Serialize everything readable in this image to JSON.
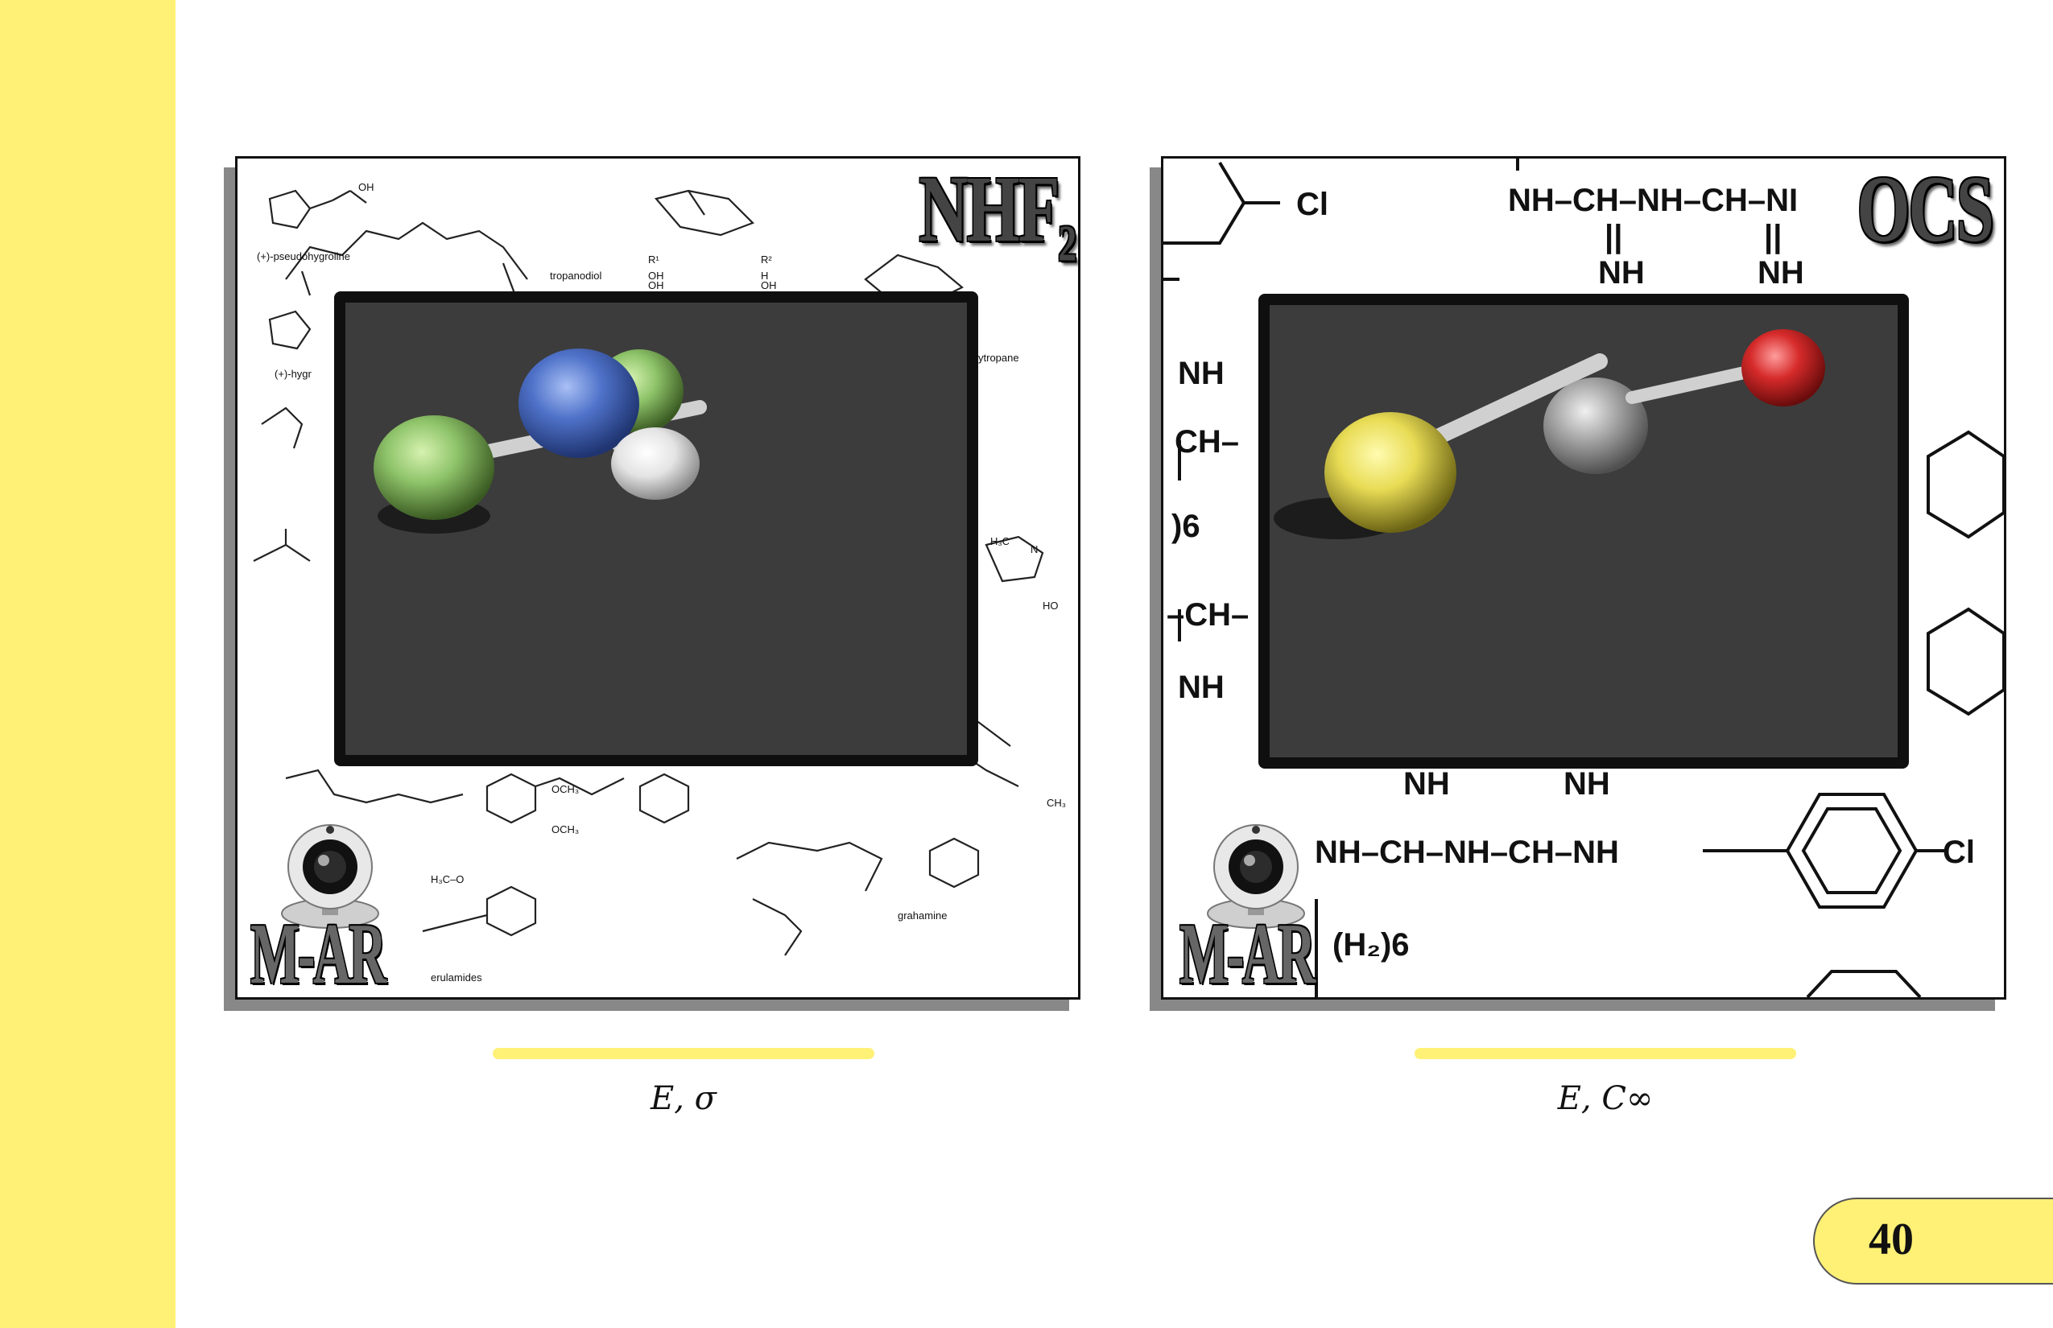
{
  "colors": {
    "accent_yellow": "#fff176",
    "viewport_bg": "#3c3c3c"
  },
  "left_panel": {
    "formula": "NHF",
    "formula_subscript": "2",
    "logo_text": "M-AR",
    "caption": "E, σ",
    "background_labels": [
      "(+)-pseudohygroline",
      "tropanodiol",
      "(+)-hygr",
      "ytropane",
      "grahamine",
      "erulamides",
      "OCH₃",
      "OCH₃",
      "OH",
      "R¹",
      "R²",
      "OH",
      "OH",
      "H",
      "OH",
      "H₃C",
      "N",
      "CH₃",
      "HO",
      "H₃C–O"
    ],
    "atoms": [
      "F-green",
      "N-blue",
      "F-green",
      "H-white"
    ]
  },
  "right_panel": {
    "formula": "OCS",
    "logo_text": "M-AR",
    "caption": "E, C∞",
    "background_labels": [
      "Cl",
      "NH–CH–NH–CH–NI",
      "NH",
      "NH",
      "NH",
      "CH–",
      ")6",
      "–CH–",
      "NH",
      "NH",
      "NH",
      "NH–CH–NH–CH–NH",
      "Cl",
      "(H₂)6",
      "||",
      "||"
    ],
    "atoms": [
      "S-yellow",
      "C-gray",
      "O-red"
    ]
  },
  "page_number": "40"
}
